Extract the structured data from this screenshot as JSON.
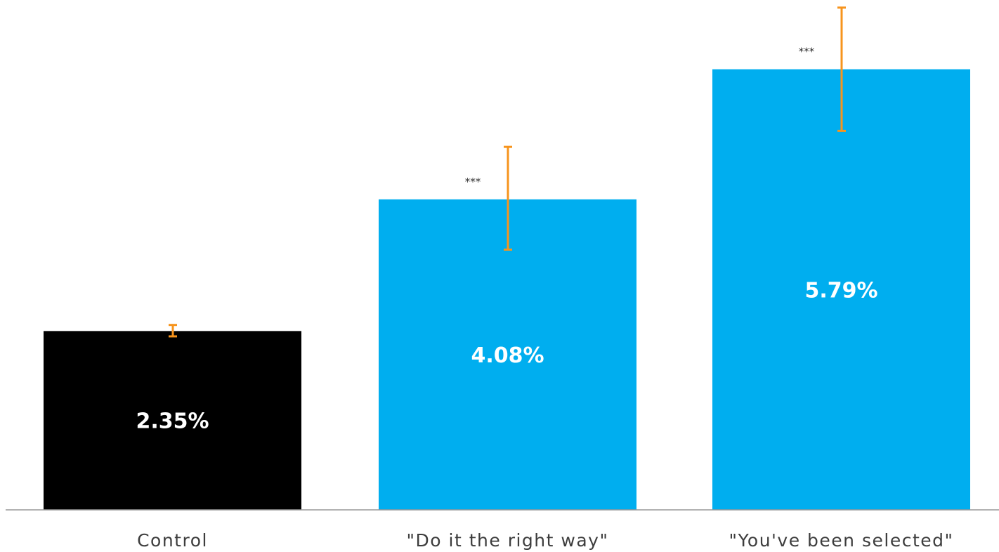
{
  "chart_data": {
    "type": "bar",
    "categories": [
      "Control",
      "\"Do it the right way\"",
      "\"You've been selected\""
    ],
    "values": [
      2.35,
      4.08,
      5.79
    ],
    "value_labels": [
      "2.35%",
      "4.08%",
      "5.79%"
    ],
    "error_bars": [
      {
        "low": 2.28,
        "high": 2.43
      },
      {
        "low": 3.42,
        "high": 4.77
      },
      {
        "low": 4.98,
        "high": 6.6
      }
    ],
    "significance": [
      "",
      "***",
      "***"
    ],
    "bar_colors": [
      "#000000",
      "#00aeef",
      "#00aeef"
    ],
    "error_bar_color": "#f7941d",
    "title": "",
    "xlabel": "",
    "ylabel": "",
    "ylim": [
      0,
      6.7
    ],
    "grid": false,
    "legend": "none"
  }
}
